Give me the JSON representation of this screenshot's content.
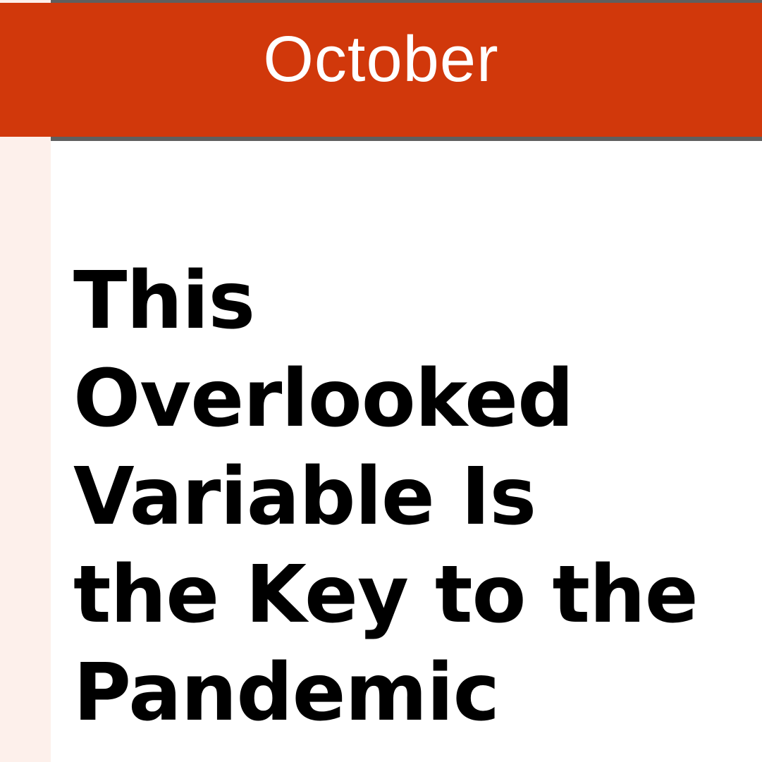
{
  "header": {
    "month": "October"
  },
  "article": {
    "headline": "This Overlooked\nVariable Is\nthe Key to the\nPandemic"
  },
  "colors": {
    "header_background": "#d1380b",
    "header_border": "#5f5f5f",
    "left_strip": "#fdf0eb",
    "headline_text": "#000000",
    "month_text": "#ffffff"
  }
}
